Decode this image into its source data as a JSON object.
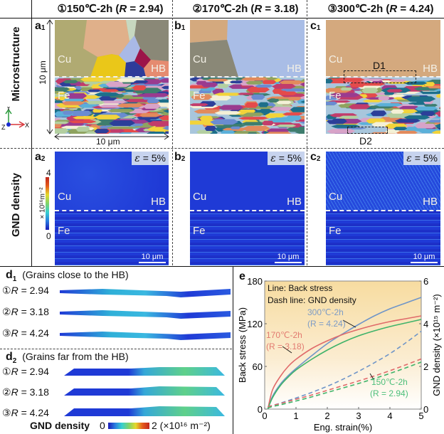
{
  "columns": [
    {
      "prefix": "①150℃-2h (",
      "r_symbol": "R",
      "r_value": " = 2.94)"
    },
    {
      "prefix": "②170℃-2h (",
      "r_symbol": "R",
      "r_value": " = 3.18)"
    },
    {
      "prefix": "③300℃-2h (",
      "r_symbol": "R",
      "r_value": " = 4.24)"
    }
  ],
  "rows": {
    "microstructure": "Microstructure",
    "gnd": "GND density"
  },
  "axes_triad": {
    "y": "Y",
    "x": "X",
    "z": "Z"
  },
  "microstructure_panels": [
    {
      "label": "a",
      "sub": "1",
      "cu": "Cu",
      "fe": "Fe",
      "hb": "HB",
      "scale_v": "10 μm",
      "scale_h": "10 μm"
    },
    {
      "label": "b",
      "sub": "1",
      "cu": "Cu",
      "fe": "Fe",
      "hb": "HB"
    },
    {
      "label": "c",
      "sub": "1",
      "cu": "Cu",
      "fe": "Fe",
      "hb": "HB",
      "box1": "D1",
      "box2": "D2"
    }
  ],
  "gnd_panels": [
    {
      "label": "a",
      "sub": "2",
      "cu": "Cu",
      "fe": "Fe",
      "hb": "HB",
      "strain": "= 5%",
      "eps": "ε",
      "scalebar": "10 μm",
      "colorbar": {
        "max": "4",
        "min": "0",
        "unit": "× 10¹⁶m⁻²"
      }
    },
    {
      "label": "b",
      "sub": "2",
      "cu": "Cu",
      "fe": "Fe",
      "hb": "HB",
      "strain": "= 5%",
      "eps": "ε",
      "scalebar": "10 μm"
    },
    {
      "label": "c",
      "sub": "2",
      "cu": "Cu",
      "fe": "Fe",
      "hb": "HB",
      "strain": "= 5%",
      "eps": "ε",
      "scalebar": "10 μm"
    }
  ],
  "panel_d1": {
    "label": "d",
    "sub": "1",
    "title": "(Grains close to the HB)",
    "rows": [
      {
        "circle": "①",
        "r": "R",
        "value": " = 2.94"
      },
      {
        "circle": "②",
        "r": "R",
        "value": " = 3.18"
      },
      {
        "circle": "③",
        "r": "R",
        "value": " = 4.24"
      }
    ]
  },
  "panel_d2": {
    "label": "d",
    "sub": "2",
    "title": "(Grains far from the HB)",
    "rows": [
      {
        "circle": "①",
        "r": "R",
        "value": " = 2.94"
      },
      {
        "circle": "②",
        "r": "R",
        "value": " = 3.18"
      },
      {
        "circle": "③",
        "r": "R",
        "value": " = 4.24"
      }
    ]
  },
  "gnd_colorbar": {
    "label": "GND density",
    "min": "0",
    "max": "2 (×10¹⁶ m⁻²)"
  },
  "chart_data": {
    "type": "line",
    "panel_label": "e",
    "title": "",
    "xlabel": "Eng. strain(%)",
    "ylabel": "Back stress (MPa)",
    "y2label": "GND density (×10¹⁵ m⁻²)",
    "xlim": [
      0,
      5
    ],
    "ylim": [
      0,
      180
    ],
    "y2lim": [
      0,
      6
    ],
    "xticks": [
      "0",
      "1",
      "2",
      "3",
      "4",
      "5"
    ],
    "yticks": [
      "0",
      "60",
      "120",
      "180"
    ],
    "y2ticks": [
      "0",
      "2",
      "4",
      "6"
    ],
    "legend_text": [
      "Line: Back stress",
      "Dash line: GND density"
    ],
    "legend_placement": "top-left",
    "x": [
      0.1,
      0.25,
      0.5,
      0.75,
      1.0,
      1.5,
      2.0,
      2.5,
      3.0,
      3.5,
      4.0,
      4.5,
      5.0
    ],
    "series": [
      {
        "name": "300℃-2h (R = 4.24) back stress",
        "axis": "left",
        "style": "solid",
        "color": "#6f95c8",
        "values": [
          0,
          18,
          35,
          47,
          57,
          75,
          92,
          106,
          119,
          131,
          141,
          149,
          157
        ]
      },
      {
        "name": "170℃-2h (R = 3.18) back stress",
        "axis": "left",
        "style": "solid",
        "color": "#e06a6a",
        "values": [
          0,
          27,
          46,
          60,
          70,
          85,
          96,
          105,
          112,
          118,
          123,
          127,
          131
        ]
      },
      {
        "name": "150℃-2h (R = 2.94) back stress",
        "axis": "left",
        "style": "solid",
        "color": "#3fb36a",
        "values": [
          0,
          16,
          33,
          45,
          55,
          70,
          83,
          94,
          103,
          110,
          116,
          121,
          126
        ]
      },
      {
        "name": "300℃-2h (R = 4.24) GND density",
        "axis": "right",
        "style": "dashed",
        "color": "#6f95c8",
        "values": [
          0.1,
          0.17,
          0.28,
          0.4,
          0.52,
          0.78,
          1.07,
          1.4,
          1.77,
          2.17,
          2.6,
          3.1,
          3.65
        ]
      },
      {
        "name": "170℃-2h (R = 3.18) GND density",
        "axis": "right",
        "style": "dashed",
        "color": "#e06a6a",
        "values": [
          0.1,
          0.17,
          0.26,
          0.36,
          0.46,
          0.66,
          0.88,
          1.1,
          1.32,
          1.55,
          1.8,
          2.07,
          2.35
        ]
      },
      {
        "name": "150℃-2h (R = 2.94) GND density",
        "axis": "right",
        "style": "dashed",
        "color": "#3fb36a",
        "values": [
          0.05,
          0.12,
          0.2,
          0.29,
          0.38,
          0.57,
          0.78,
          0.99,
          1.2,
          1.43,
          1.67,
          1.93,
          2.2
        ]
      }
    ],
    "annotations": [
      {
        "text": "300℃-2h",
        "sub": "(R = 4.24)",
        "color": "#7d9cc6"
      },
      {
        "text": "170℃-2h",
        "sub": "(R = 3.18)",
        "color": "#e27a70"
      },
      {
        "text": "150℃-2h",
        "sub": "(R = 2.94)",
        "color": "#4cbf7c"
      }
    ]
  }
}
